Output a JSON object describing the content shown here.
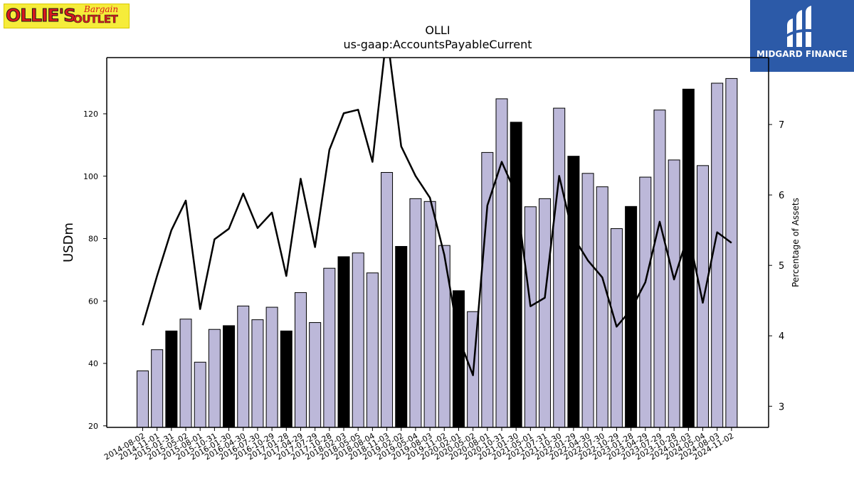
{
  "logos": {
    "left": {
      "line1": "OLLIE'S",
      "line2": "Bargain",
      "line3": "OUTLET"
    },
    "right": {
      "name": "MIDGARD FINANCE"
    }
  },
  "colors": {
    "bar": "#bcb8d9",
    "bar_highlight": "#000000",
    "line": "#000000"
  },
  "chart_data": {
    "type": "bar",
    "title": "OLLI",
    "subtitle": "us-gaap:AccountsPayableCurrent",
    "ylabel": "USDm",
    "y2label": "Percentage of Assets",
    "ylim": [
      19.5,
      138
    ],
    "y2lim": [
      2.7,
      7.95
    ],
    "yticks": [
      20,
      40,
      60,
      80,
      100,
      120
    ],
    "y2ticks": [
      3,
      4,
      5,
      6,
      7
    ],
    "categories": [
      "2014-08-02",
      "2014-11-01",
      "2015-01-31",
      "2015-05-02",
      "2015-08-01",
      "2015-10-31",
      "2016-01-30",
      "2016-04-30",
      "2016-07-30",
      "2016-10-29",
      "2017-01-28",
      "2017-04-29",
      "2017-07-29",
      "2017-10-28",
      "2018-02-03",
      "2018-05-05",
      "2018-08-04",
      "2018-11-03",
      "2019-02-02",
      "2019-05-04",
      "2019-08-03",
      "2019-11-02",
      "2020-02-01",
      "2020-05-02",
      "2020-08-01",
      "2020-10-31",
      "2021-01-30",
      "2021-05-01",
      "2021-07-31",
      "2021-10-30",
      "2022-01-29",
      "2022-04-30",
      "2022-07-30",
      "2022-10-29",
      "2023-01-28",
      "2023-04-29",
      "2023-07-29",
      "2023-10-28",
      "2024-02-03",
      "2024-05-04",
      "2024-08-03",
      "2024-11-02"
    ],
    "series": [
      {
        "type": "bar",
        "values": [
          37.6,
          44.4,
          50.4,
          54.2,
          40.4,
          50.9,
          52.1,
          58.4,
          54.0,
          58.0,
          50.4,
          62.7,
          53.1,
          70.5,
          74.2,
          75.4,
          69.0,
          101.2,
          77.5,
          92.8,
          91.9,
          77.8,
          63.3,
          56.6,
          107.6,
          124.8,
          117.3,
          90.2,
          92.8,
          121.8,
          106.4,
          100.9,
          96.6,
          83.2,
          90.3,
          99.7,
          121.2,
          105.2,
          127.9,
          103.4,
          129.8,
          131.3
        ],
        "highlight": [
          false,
          false,
          true,
          false,
          false,
          false,
          true,
          false,
          false,
          false,
          true,
          false,
          false,
          false,
          true,
          false,
          false,
          false,
          true,
          false,
          false,
          false,
          true,
          false,
          false,
          false,
          true,
          false,
          false,
          false,
          true,
          false,
          false,
          false,
          true,
          false,
          false,
          false,
          true,
          false,
          false,
          false
        ]
      },
      {
        "type": "line",
        "axis": "right",
        "values": [
          4.15,
          4.85,
          5.5,
          5.92,
          4.38,
          5.37,
          5.52,
          6.02,
          5.53,
          5.75,
          4.85,
          6.23,
          5.26,
          6.64,
          7.16,
          7.21,
          6.47,
          8.3,
          6.69,
          6.27,
          5.96,
          5.15,
          3.97,
          3.44,
          5.85,
          6.47,
          6.01,
          4.42,
          4.54,
          6.27,
          5.4,
          5.07,
          4.83,
          4.13,
          4.37,
          4.76,
          5.62,
          4.8,
          5.45,
          4.47,
          5.47,
          5.32
        ]
      }
    ],
    "grid": false
  }
}
